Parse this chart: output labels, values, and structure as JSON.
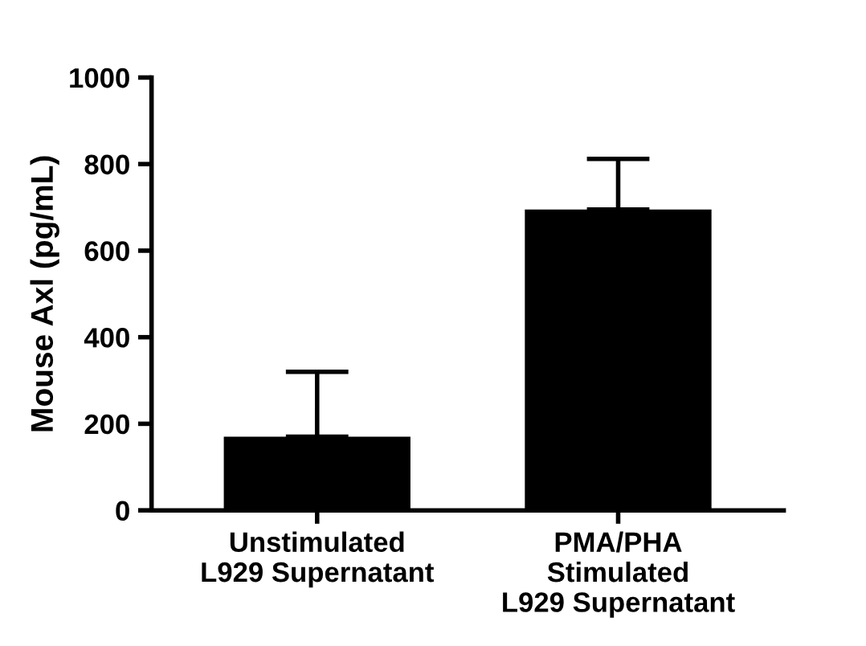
{
  "chart_data": {
    "type": "bar",
    "ylabel": "Mouse Axl (pg/mL)",
    "categories": [
      "Unstimulated\nL929 Supernatant",
      "PMA/PHA\nStimulated\nL929 Supernatant"
    ],
    "values": [
      170,
      695
    ],
    "errors": [
      [
        170,
        320
      ],
      [
        695,
        812
      ]
    ],
    "color": "#000000",
    "ylim": [
      0,
      1000
    ],
    "yticks": [
      0,
      200,
      400,
      600,
      800,
      1000
    ],
    "grid": false
  }
}
